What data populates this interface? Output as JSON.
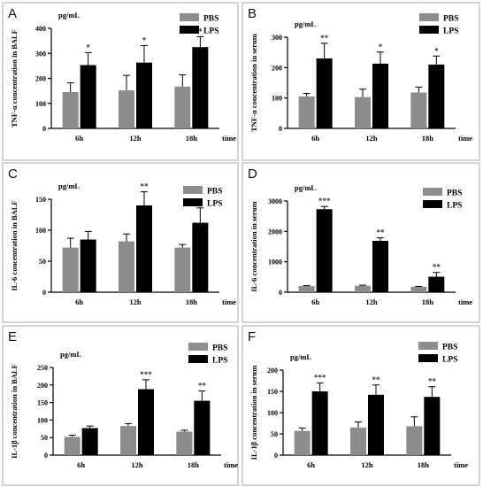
{
  "colors": {
    "PBS": "#8c8c8c",
    "LPS": "#000000",
    "frame": "#a8a8a8"
  },
  "chart_data": [
    {
      "panel": "A",
      "type": "bar",
      "ylabel": "TNF-α concentration in BALF",
      "unit": "pg/mL",
      "xunit": "time",
      "categories": [
        "6h",
        "12h",
        "18h"
      ],
      "ylim": [
        0,
        400
      ],
      "yticks": [
        0,
        100,
        200,
        300,
        400
      ],
      "legend": [
        "PBS",
        "LPS"
      ],
      "series": [
        {
          "name": "PBS",
          "values": [
            145,
            152,
            167
          ],
          "errors": [
            37,
            60,
            47
          ]
        },
        {
          "name": "LPS",
          "values": [
            253,
            263,
            325
          ],
          "errors": [
            50,
            68,
            42
          ],
          "significance": [
            "*",
            "*",
            "*"
          ]
        }
      ]
    },
    {
      "panel": "B",
      "type": "bar",
      "ylabel": "TNF-α concentration in serum",
      "unit": "pg/mL",
      "xunit": "time",
      "categories": [
        "6h",
        "12h",
        "18h"
      ],
      "ylim": [
        0,
        300
      ],
      "yticks": [
        0,
        100,
        200,
        300
      ],
      "legend": [
        "PBS",
        "LPS"
      ],
      "series": [
        {
          "name": "PBS",
          "values": [
            105,
            103,
            118
          ],
          "errors": [
            10,
            26,
            18
          ]
        },
        {
          "name": "LPS",
          "values": [
            230,
            213,
            210
          ],
          "errors": [
            50,
            38,
            28
          ],
          "significance": [
            "**",
            "*",
            "*"
          ]
        }
      ]
    },
    {
      "panel": "C",
      "type": "bar",
      "ylabel": "IL-6 concentration in BALF",
      "unit": "pg/mL",
      "xunit": "time",
      "categories": [
        "6h",
        "12h",
        "18h"
      ],
      "ylim": [
        0,
        150
      ],
      "yticks": [
        0,
        50,
        100,
        150
      ],
      "legend": [
        "PBS",
        "LPS"
      ],
      "series": [
        {
          "name": "PBS",
          "values": [
            72,
            82,
            72
          ],
          "errors": [
            15,
            12,
            5
          ]
        },
        {
          "name": "LPS",
          "values": [
            85,
            140,
            112
          ],
          "errors": [
            13,
            22,
            24
          ],
          "significance": [
            "",
            "**",
            "*"
          ]
        }
      ]
    },
    {
      "panel": "D",
      "type": "bar",
      "ylabel": "IL-6 concentration in serum",
      "unit": "pg/mL",
      "xunit": "time",
      "categories": [
        "6h",
        "12h",
        "18h"
      ],
      "ylim": [
        0,
        3000
      ],
      "yticks": [
        0,
        1000,
        2000,
        3000
      ],
      "legend": [
        "PBS",
        "LPS"
      ],
      "series": [
        {
          "name": "PBS",
          "values": [
            200,
            210,
            180
          ],
          "errors": [
            15,
            20,
            10
          ]
        },
        {
          "name": "LPS",
          "values": [
            2730,
            1690,
            510
          ],
          "errors": [
            90,
            100,
            140
          ],
          "significance": [
            "***",
            "**",
            "**"
          ]
        }
      ]
    },
    {
      "panel": "E",
      "type": "bar",
      "ylabel": "IL-1β concentration in BALF",
      "unit": "pg/mL",
      "xunit": "time",
      "categories": [
        "6h",
        "12h",
        "18h"
      ],
      "ylim": [
        0,
        250
      ],
      "yticks": [
        0,
        50,
        100,
        150,
        200,
        250
      ],
      "legend": [
        "PBS",
        "LPS"
      ],
      "series": [
        {
          "name": "PBS",
          "values": [
            52,
            83,
            67
          ],
          "errors": [
            5,
            7,
            4
          ]
        },
        {
          "name": "LPS",
          "values": [
            77,
            188,
            155
          ],
          "errors": [
            6,
            27,
            28
          ],
          "significance": [
            "",
            "***",
            "**"
          ]
        }
      ]
    },
    {
      "panel": "F",
      "type": "bar",
      "ylabel": "IL-1β concentration in serum",
      "unit": "pg/mL",
      "xunit": "time",
      "categories": [
        "6h",
        "12h",
        "18h"
      ],
      "ylim": [
        0,
        200
      ],
      "yticks": [
        0,
        50,
        100,
        150,
        200
      ],
      "legend": [
        "PBS",
        "LPS"
      ],
      "series": [
        {
          "name": "PBS",
          "values": [
            57,
            65,
            68
          ],
          "errors": [
            7,
            13,
            22
          ]
        },
        {
          "name": "LPS",
          "values": [
            150,
            142,
            137
          ],
          "errors": [
            20,
            23,
            24
          ],
          "significance": [
            "***",
            "**",
            "**"
          ]
        }
      ]
    }
  ]
}
